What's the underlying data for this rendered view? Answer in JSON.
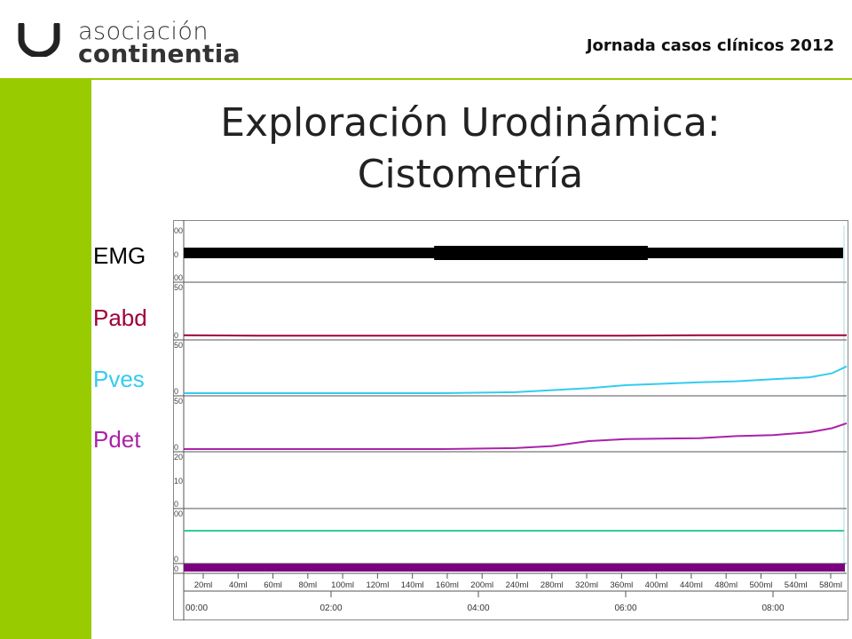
{
  "header": {
    "logo_line1": "asociación",
    "logo_line2": "continentia",
    "event": "Jornada casos clínicos 2012"
  },
  "slide": {
    "title_line1": "Exploración Urodinámica:",
    "title_line2": "Cistometría"
  },
  "colors": {
    "brand_green": "#99cc00",
    "emg": "#000000",
    "pabd": "#a0003c",
    "pves": "#33ccee",
    "pdet": "#aa22aa",
    "green_trace": "#33cc99",
    "purple_bar": "#7a0080"
  },
  "chart_data": {
    "type": "line",
    "title": "",
    "channels": [
      {
        "name": "EMG",
        "scale_top": "00",
        "scale_mid": "0",
        "scale_bottom": "00"
      },
      {
        "name": "Pabd",
        "scale_top": "50",
        "scale_bottom": "0"
      },
      {
        "name": "Pves",
        "scale_top": "50",
        "scale_bottom": "0"
      },
      {
        "name": "Pdet",
        "scale_top": "50",
        "scale_bottom": "0"
      },
      {
        "name": "",
        "scale_top": "20",
        "scale_mid": "10",
        "scale_bottom": "0"
      },
      {
        "name": "",
        "scale_top": "00",
        "scale_bottom": "0"
      },
      {
        "name": "",
        "scale_top": "",
        "scale_bottom": "0"
      }
    ],
    "volume_ticks": [
      "20ml",
      "40ml",
      "60ml",
      "80ml",
      "100ml",
      "120ml",
      "140ml",
      "160ml",
      "200ml",
      "240ml",
      "280ml",
      "320ml",
      "360ml",
      "400ml",
      "440ml",
      "480ml",
      "500ml",
      "540ml",
      "580ml"
    ],
    "time_ticks": [
      "00:00",
      "02:00",
      "04:00",
      "06:00",
      "08:00"
    ],
    "time_range_min": [
      0,
      9
    ],
    "series": [
      {
        "name": "Pabd",
        "x_min": [
          0,
          1,
          2,
          3,
          4,
          5,
          6,
          7,
          8,
          9
        ],
        "values": [
          2,
          1.5,
          1.5,
          1.5,
          1.5,
          1.5,
          1.5,
          2,
          2,
          2
        ]
      },
      {
        "name": "Pves",
        "x_min": [
          0,
          3.5,
          4.5,
          5.0,
          5.5,
          6.0,
          7.0,
          7.5,
          8.0,
          8.5,
          8.8,
          9.0
        ],
        "values": [
          0,
          0,
          1,
          3,
          5,
          8,
          11,
          12,
          14,
          16,
          20,
          27
        ]
      },
      {
        "name": "Pdet",
        "x_min": [
          0,
          3.5,
          4.5,
          5.0,
          5.5,
          6.0,
          7.0,
          7.5,
          8.0,
          8.5,
          8.8,
          9.0
        ],
        "values": [
          0,
          0,
          1,
          3,
          8,
          10,
          11,
          13,
          14,
          17,
          21,
          26
        ]
      }
    ]
  }
}
